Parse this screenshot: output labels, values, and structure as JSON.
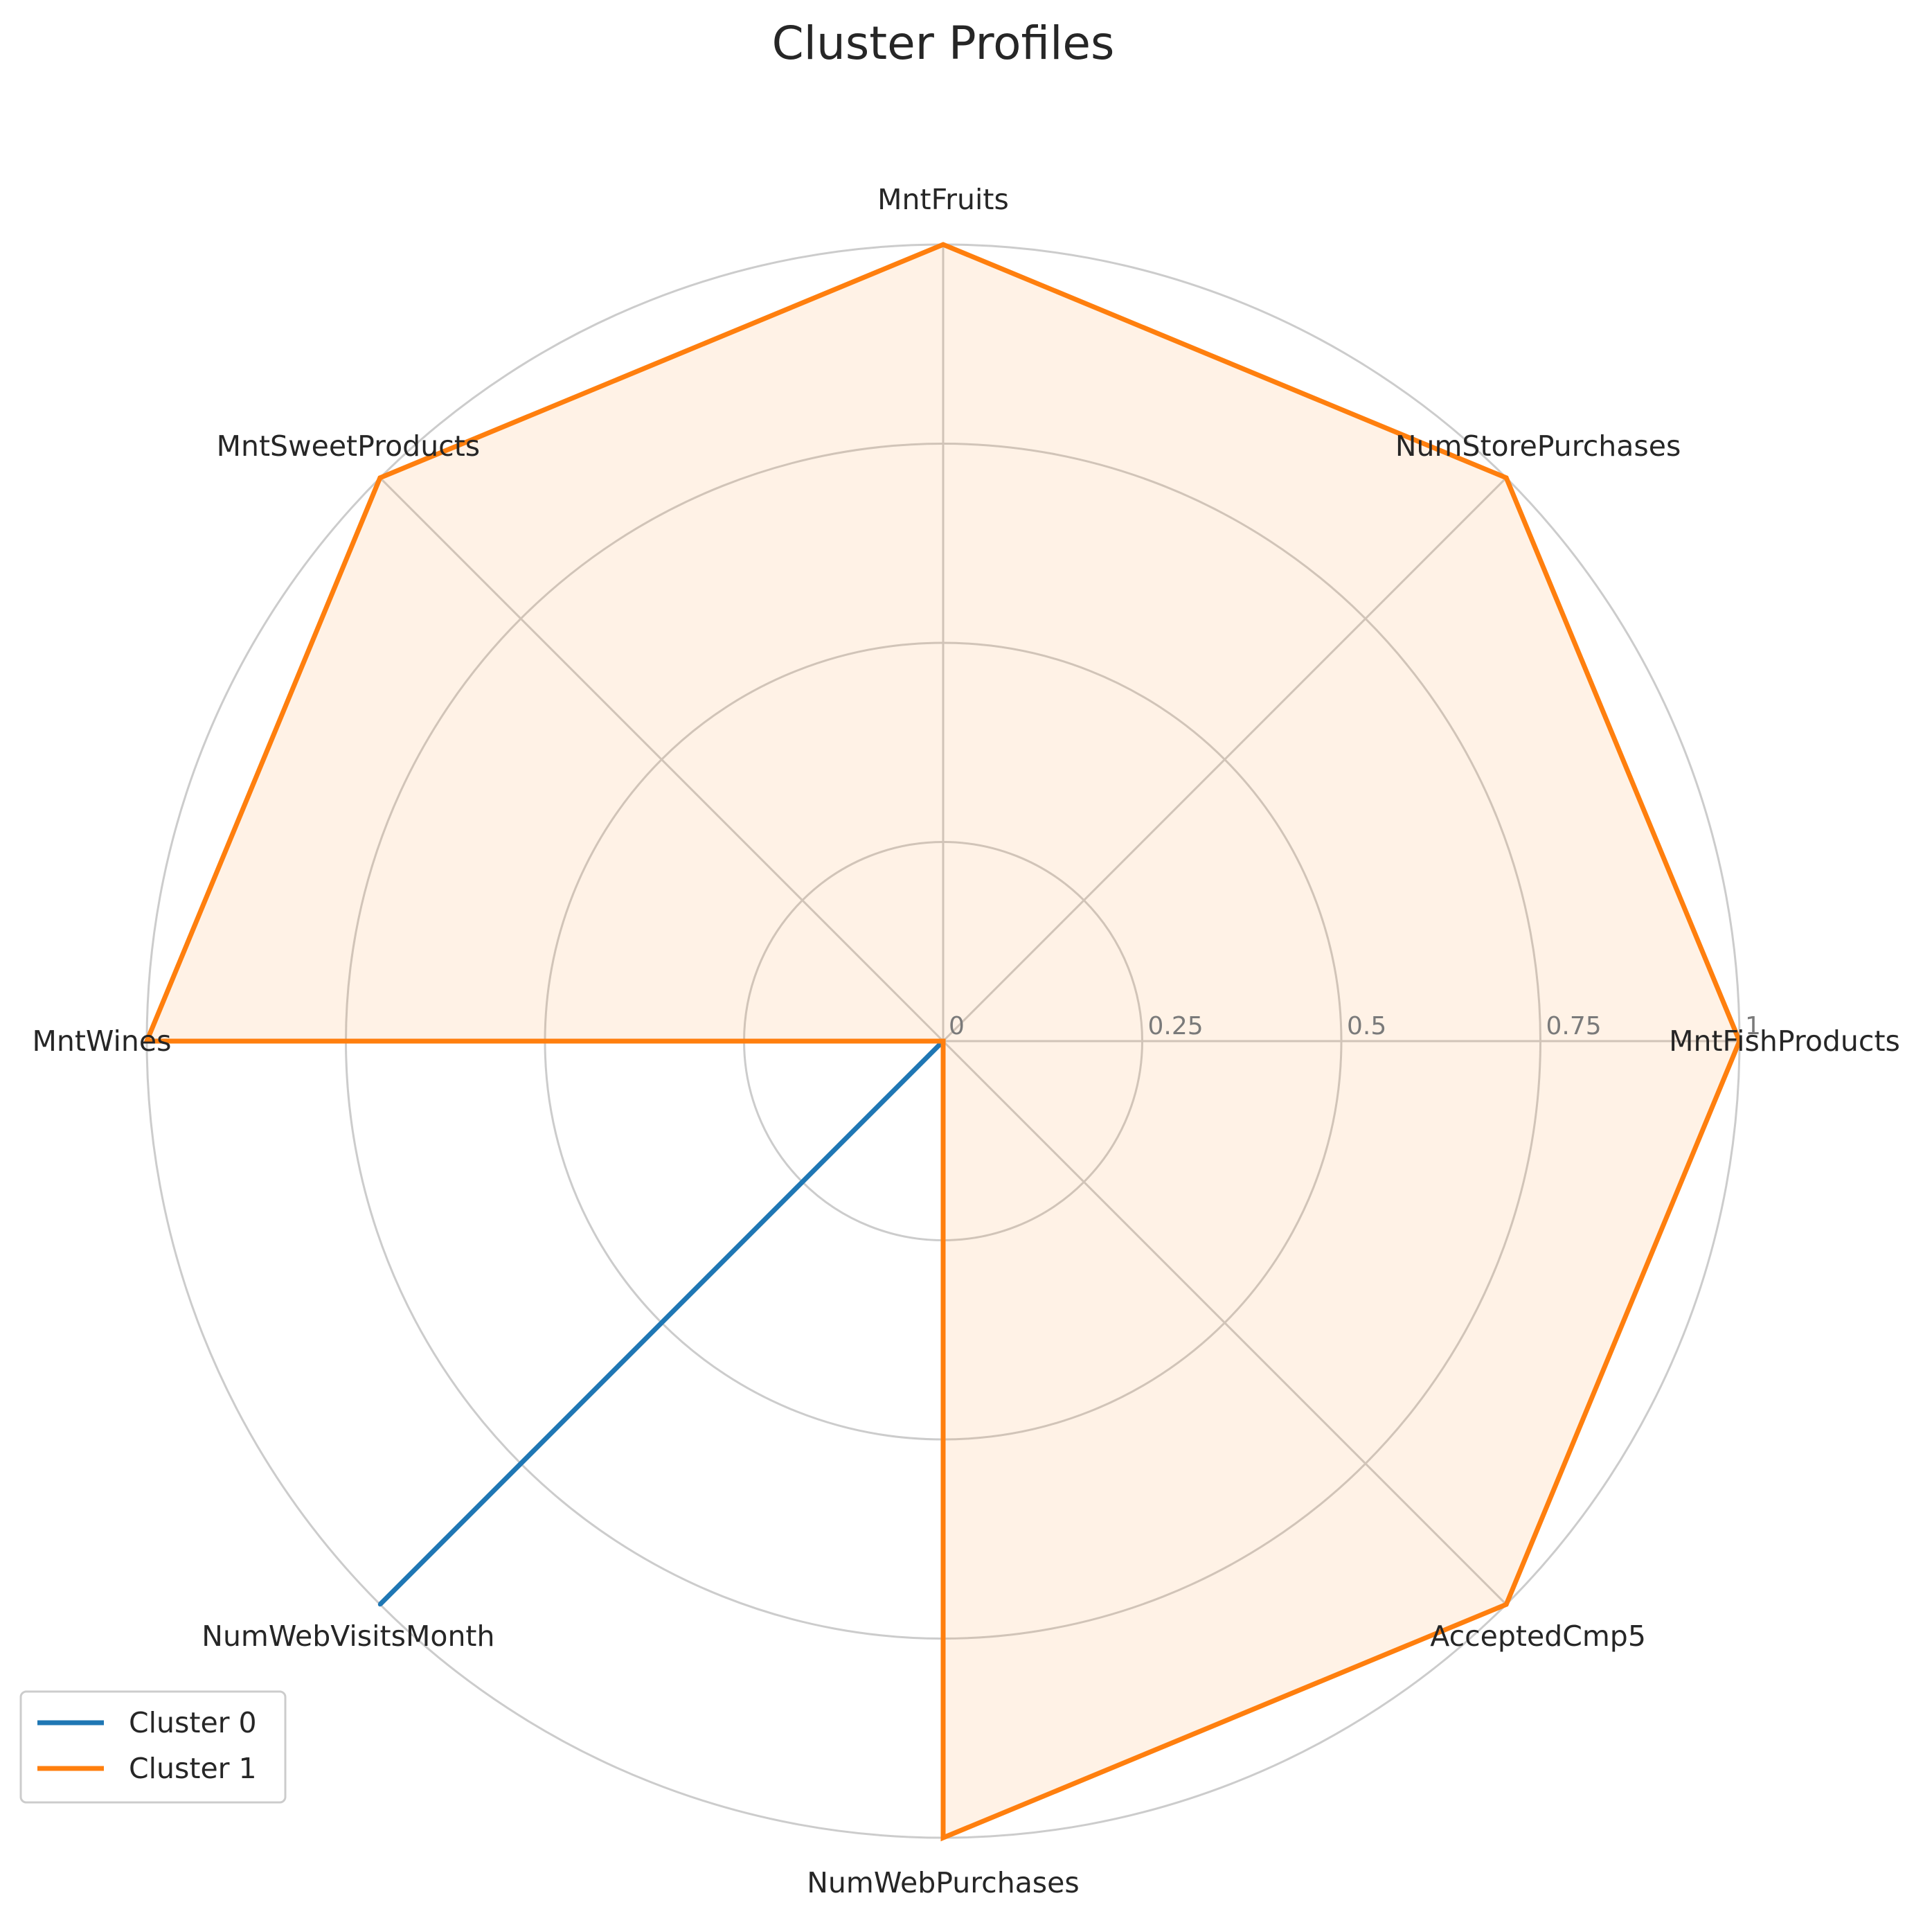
{
  "chart_data": {
    "type": "radar",
    "title": "Cluster Profiles",
    "axes": [
      "MntFishProducts",
      "NumStorePurchases",
      "MntFruits",
      "MntSweetProducts",
      "MntWines",
      "NumWebVisitsMonth",
      "NumWebPurchases",
      "AcceptedCmp5"
    ],
    "r_ticks": [
      0,
      0.25,
      0.5,
      0.75,
      1
    ],
    "r_tick_labels": [
      "0",
      "0.25",
      "0.5",
      "0.75",
      "1"
    ],
    "rlim": [
      0,
      1
    ],
    "grid": true,
    "legend_position": "lower-left",
    "series": [
      {
        "name": "Cluster 0",
        "color": "#1f77b4",
        "filled": false,
        "values": [
          0,
          0,
          0,
          0,
          0,
          1,
          0,
          0
        ]
      },
      {
        "name": "Cluster 1",
        "color": "#ff7f0e",
        "filled": true,
        "values": [
          1,
          1,
          1,
          1,
          1,
          0,
          1,
          1
        ]
      }
    ]
  }
}
